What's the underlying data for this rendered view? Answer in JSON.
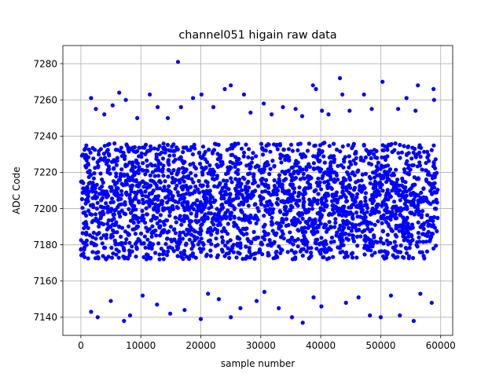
{
  "chart_data": {
    "type": "scatter",
    "title": "channel051 higain raw data",
    "xlabel": "sample number",
    "ylabel": "ADC Code",
    "xlim": [
      -3000,
      62000
    ],
    "ylim": [
      7130,
      7290
    ],
    "xticks": [
      0,
      10000,
      20000,
      30000,
      40000,
      50000,
      60000
    ],
    "xtick_labels": [
      "0",
      "10000",
      "20000",
      "30000",
      "40000",
      "50000",
      "60000"
    ],
    "yticks": [
      7140,
      7160,
      7180,
      7200,
      7220,
      7240,
      7260,
      7280
    ],
    "ytick_labels": [
      "7140",
      "7160",
      "7180",
      "7200",
      "7220",
      "7240",
      "7260",
      "7280"
    ],
    "grid": true,
    "marker_color": "#0000ff",
    "series": [
      {
        "x_range": [
          0,
          59500
        ],
        "dense_band": [
          7172,
          7236
        ],
        "outliers": [
          [
            16200,
            7281
          ],
          [
            43200,
            7272
          ],
          [
            50300,
            7270
          ],
          [
            38700,
            7268
          ],
          [
            25000,
            7268
          ],
          [
            56200,
            7268
          ],
          [
            24000,
            7266
          ],
          [
            39200,
            7266
          ],
          [
            58800,
            7266
          ],
          [
            6400,
            7264
          ],
          [
            11500,
            7263
          ],
          [
            20100,
            7263
          ],
          [
            27200,
            7263
          ],
          [
            43600,
            7263
          ],
          [
            47200,
            7263
          ],
          [
            1700,
            7261
          ],
          [
            7500,
            7260
          ],
          [
            18700,
            7261
          ],
          [
            30500,
            7258
          ],
          [
            54300,
            7261
          ],
          [
            58900,
            7260
          ],
          [
            5300,
            7257
          ],
          [
            12800,
            7256
          ],
          [
            16700,
            7256
          ],
          [
            22100,
            7256
          ],
          [
            33700,
            7256
          ],
          [
            2500,
            7255
          ],
          [
            35800,
            7255
          ],
          [
            40200,
            7254
          ],
          [
            48500,
            7255
          ],
          [
            52900,
            7255
          ],
          [
            28300,
            7253
          ],
          [
            44800,
            7254
          ],
          [
            3900,
            7252
          ],
          [
            14500,
            7250
          ],
          [
            9400,
            7250
          ],
          [
            41300,
            7252
          ],
          [
            31800,
            7252
          ],
          [
            55800,
            7254
          ],
          [
            36900,
            7251
          ],
          [
            37000,
            7137
          ],
          [
            20000,
            7139
          ],
          [
            7200,
            7138
          ],
          [
            55500,
            7138
          ],
          [
            50000,
            7140
          ],
          [
            48200,
            7141
          ],
          [
            35200,
            7140
          ],
          [
            25000,
            7140
          ],
          [
            2800,
            7140
          ],
          [
            53200,
            7141
          ],
          [
            8200,
            7141
          ],
          [
            1700,
            7143
          ],
          [
            14900,
            7142
          ],
          [
            17300,
            7144
          ],
          [
            26600,
            7145
          ],
          [
            40100,
            7146
          ],
          [
            12700,
            7147
          ],
          [
            33000,
            7145
          ],
          [
            5000,
            7149
          ],
          [
            44200,
            7148
          ],
          [
            29300,
            7149
          ],
          [
            58500,
            7148
          ],
          [
            23000,
            7150
          ],
          [
            46300,
            7151
          ],
          [
            38800,
            7151
          ],
          [
            10300,
            7152
          ],
          [
            21200,
            7153
          ],
          [
            51700,
            7152
          ],
          [
            56600,
            7153
          ],
          [
            30600,
            7154
          ]
        ]
      }
    ]
  }
}
